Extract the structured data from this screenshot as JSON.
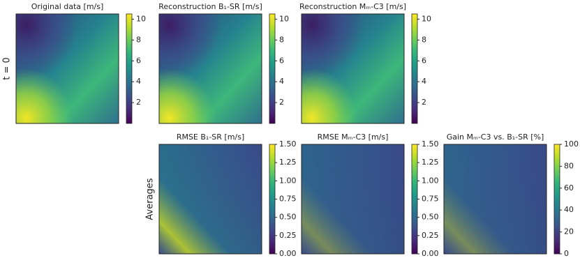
{
  "chart_data": {
    "type": "heatmap-grid",
    "rows": [
      {
        "label": "t = 0",
        "panels": [
          {
            "title": "Original data [m/s]",
            "colorbar": {
              "lim": [
                0,
                10.5
              ],
              "ticks": [
                2,
                4,
                6,
                8,
                10
              ]
            }
          },
          {
            "title": "Reconstruction B₁-SR [m/s]",
            "colorbar": {
              "lim": [
                0,
                10.5
              ],
              "ticks": [
                2,
                4,
                6,
                8,
                10
              ]
            }
          },
          {
            "title": "Reconstruction Mₘ-C3 [m/s]",
            "colorbar": {
              "lim": [
                0,
                10.5
              ],
              "ticks": [
                2,
                4,
                6,
                8,
                10
              ]
            }
          }
        ]
      },
      {
        "label": "Averages",
        "panels": [
          {
            "title": "RMSE B₁-SR [m/s]",
            "colorbar": {
              "lim": [
                0,
                1.5
              ],
              "ticks": [
                {
                  "value": 0,
                  "label": "0.00"
                },
                {
                  "value": 0.25,
                  "label": "0.25"
                },
                {
                  "value": 0.5,
                  "label": "0.50"
                },
                {
                  "value": 0.75,
                  "label": "0.75"
                },
                {
                  "value": 1,
                  "label": "1.00"
                },
                {
                  "value": 1.25,
                  "label": "1.25"
                },
                {
                  "value": 1.5,
                  "label": "1.50"
                }
              ]
            }
          },
          {
            "title": "RMSE Mₘ-C3 [m/s]",
            "colorbar": {
              "lim": [
                0,
                1.5
              ],
              "ticks": [
                {
                  "value": 0,
                  "label": "0.00"
                },
                {
                  "value": 0.25,
                  "label": "0.25"
                },
                {
                  "value": 0.5,
                  "label": "0.50"
                },
                {
                  "value": 0.75,
                  "label": "0.75"
                },
                {
                  "value": 1,
                  "label": "1.00"
                },
                {
                  "value": 1.25,
                  "label": "1.25"
                },
                {
                  "value": 1.5,
                  "label": "1.50"
                }
              ]
            }
          },
          {
            "title": "Gain Mₘ-C3 vs. B₁-SR [%]",
            "colorbar": {
              "lim": [
                0,
                100
              ],
              "ticks": [
                0,
                20,
                40,
                60,
                80,
                100
              ]
            }
          }
        ]
      }
    ]
  }
}
